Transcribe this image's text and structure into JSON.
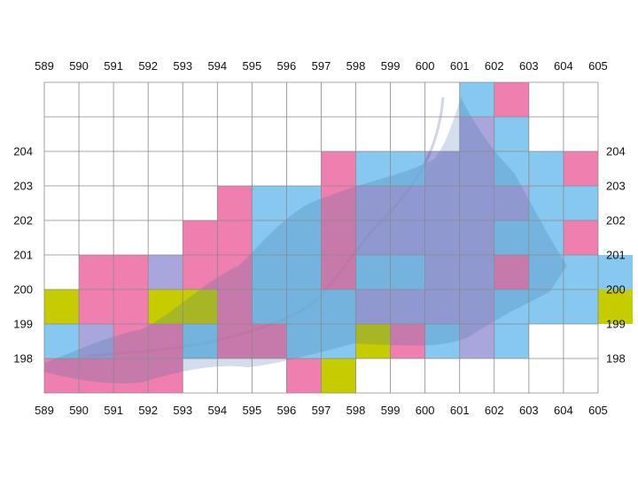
{
  "grid": {
    "x_labels": [
      "589",
      "590",
      "591",
      "592",
      "593",
      "594",
      "595",
      "596",
      "597",
      "598",
      "599",
      "600",
      "601",
      "602",
      "603",
      "604",
      "605"
    ],
    "y_labels": [
      "204",
      "203",
      "202",
      "201",
      "200",
      "199",
      "198"
    ],
    "col_start": 589,
    "top_row": 205
  },
  "colors": {
    "pink": "#ee7fae",
    "blue": "#86c8ef",
    "lavender": "#a8a6dc",
    "yellow": "#c5cc00",
    "grid_line": "#8a8a8a",
    "map_shade": "#3d6aa8"
  },
  "tiles": [
    {
      "c": 601,
      "r": 205,
      "t": "blue"
    },
    {
      "c": 602,
      "r": 205,
      "t": "pink"
    },
    {
      "c": 601,
      "r": 204,
      "t": "lavender"
    },
    {
      "c": 602,
      "r": 204,
      "t": "blue"
    },
    {
      "c": 597,
      "r": 203,
      "t": "pink"
    },
    {
      "c": 598,
      "r": 203,
      "t": "blue"
    },
    {
      "c": 599,
      "r": 203,
      "t": "blue"
    },
    {
      "c": 600,
      "r": 203,
      "t": "lavender"
    },
    {
      "c": 601,
      "r": 203,
      "t": "lavender"
    },
    {
      "c": 602,
      "r": 203,
      "t": "blue"
    },
    {
      "c": 603,
      "r": 203,
      "t": "blue"
    },
    {
      "c": 604,
      "r": 203,
      "t": "pink"
    },
    {
      "c": 594,
      "r": 202,
      "t": "pink"
    },
    {
      "c": 595,
      "r": 202,
      "t": "blue"
    },
    {
      "c": 596,
      "r": 202,
      "t": "blue"
    },
    {
      "c": 597,
      "r": 202,
      "t": "pink"
    },
    {
      "c": 598,
      "r": 202,
      "t": "lavender"
    },
    {
      "c": 599,
      "r": 202,
      "t": "lavender"
    },
    {
      "c": 600,
      "r": 202,
      "t": "lavender"
    },
    {
      "c": 601,
      "r": 202,
      "t": "lavender"
    },
    {
      "c": 602,
      "r": 202,
      "t": "lavender"
    },
    {
      "c": 603,
      "r": 202,
      "t": "blue"
    },
    {
      "c": 604,
      "r": 202,
      "t": "blue"
    },
    {
      "c": 593,
      "r": 201,
      "t": "pink"
    },
    {
      "c": 594,
      "r": 201,
      "t": "pink"
    },
    {
      "c": 595,
      "r": 201,
      "t": "blue"
    },
    {
      "c": 596,
      "r": 201,
      "t": "blue"
    },
    {
      "c": 597,
      "r": 201,
      "t": "pink"
    },
    {
      "c": 598,
      "r": 201,
      "t": "lavender"
    },
    {
      "c": 599,
      "r": 201,
      "t": "lavender"
    },
    {
      "c": 600,
      "r": 201,
      "t": "lavender"
    },
    {
      "c": 601,
      "r": 201,
      "t": "lavender"
    },
    {
      "c": 602,
      "r": 201,
      "t": "blue"
    },
    {
      "c": 603,
      "r": 201,
      "t": "blue"
    },
    {
      "c": 604,
      "r": 201,
      "t": "pink"
    },
    {
      "c": 590,
      "r": 200,
      "t": "pink"
    },
    {
      "c": 591,
      "r": 200,
      "t": "pink"
    },
    {
      "c": 592,
      "r": 200,
      "t": "lavender"
    },
    {
      "c": 593,
      "r": 200,
      "t": "pink"
    },
    {
      "c": 594,
      "r": 200,
      "t": "pink"
    },
    {
      "c": 595,
      "r": 200,
      "t": "blue"
    },
    {
      "c": 596,
      "r": 200,
      "t": "blue"
    },
    {
      "c": 597,
      "r": 200,
      "t": "pink"
    },
    {
      "c": 598,
      "r": 200,
      "t": "blue"
    },
    {
      "c": 599,
      "r": 200,
      "t": "blue"
    },
    {
      "c": 600,
      "r": 200,
      "t": "lavender"
    },
    {
      "c": 601,
      "r": 200,
      "t": "lavender"
    },
    {
      "c": 602,
      "r": 200,
      "t": "pink"
    },
    {
      "c": 603,
      "r": 200,
      "t": "blue"
    },
    {
      "c": 604,
      "r": 200,
      "t": "blue"
    },
    {
      "c": 605,
      "r": 200,
      "t": "blue"
    },
    {
      "c": 589,
      "r": 199,
      "t": "yellow"
    },
    {
      "c": 590,
      "r": 199,
      "t": "pink"
    },
    {
      "c": 591,
      "r": 199,
      "t": "pink"
    },
    {
      "c": 592,
      "r": 199,
      "t": "yellow"
    },
    {
      "c": 593,
      "r": 199,
      "t": "yellow"
    },
    {
      "c": 594,
      "r": 199,
      "t": "pink"
    },
    {
      "c": 595,
      "r": 199,
      "t": "blue"
    },
    {
      "c": 596,
      "r": 199,
      "t": "blue"
    },
    {
      "c": 597,
      "r": 199,
      "t": "blue"
    },
    {
      "c": 598,
      "r": 199,
      "t": "lavender"
    },
    {
      "c": 599,
      "r": 199,
      "t": "lavender"
    },
    {
      "c": 600,
      "r": 199,
      "t": "lavender"
    },
    {
      "c": 601,
      "r": 199,
      "t": "lavender"
    },
    {
      "c": 602,
      "r": 199,
      "t": "blue"
    },
    {
      "c": 603,
      "r": 199,
      "t": "blue"
    },
    {
      "c": 604,
      "r": 199,
      "t": "blue"
    },
    {
      "c": 605,
      "r": 199,
      "t": "yellow"
    },
    {
      "c": 589,
      "r": 198,
      "t": "blue"
    },
    {
      "c": 590,
      "r": 198,
      "t": "lavender"
    },
    {
      "c": 591,
      "r": 198,
      "t": "pink"
    },
    {
      "c": 592,
      "r": 198,
      "t": "pink"
    },
    {
      "c": 593,
      "r": 198,
      "t": "blue"
    },
    {
      "c": 594,
      "r": 198,
      "t": "pink"
    },
    {
      "c": 595,
      "r": 198,
      "t": "pink"
    },
    {
      "c": 596,
      "r": 198,
      "t": "blue"
    },
    {
      "c": 597,
      "r": 198,
      "t": "blue"
    },
    {
      "c": 598,
      "r": 198,
      "t": "yellow"
    },
    {
      "c": 599,
      "r": 198,
      "t": "pink"
    },
    {
      "c": 600,
      "r": 198,
      "t": "blue"
    },
    {
      "c": 601,
      "r": 198,
      "t": "lavender"
    },
    {
      "c": 602,
      "r": 198,
      "t": "blue"
    },
    {
      "c": 589,
      "r": 197,
      "t": "pink"
    },
    {
      "c": 590,
      "r": 197,
      "t": "pink"
    },
    {
      "c": 591,
      "r": 197,
      "t": "pink"
    },
    {
      "c": 592,
      "r": 197,
      "t": "pink"
    },
    {
      "c": 596,
      "r": 197,
      "t": "pink"
    },
    {
      "c": 597,
      "r": 197,
      "t": "yellow"
    }
  ]
}
